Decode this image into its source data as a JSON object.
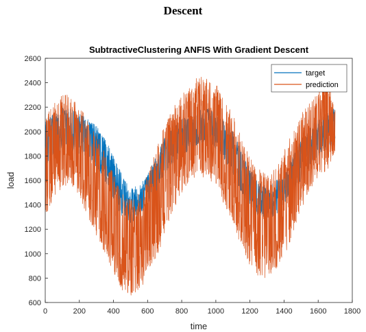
{
  "page": {
    "heading": "Descent"
  },
  "chart_data": {
    "type": "line",
    "title": "SubtractiveClustering ANFIS With Gradient Descent",
    "xlabel": "time",
    "ylabel": "load",
    "xlim": [
      0,
      1800
    ],
    "ylim": [
      600,
      2600
    ],
    "xticks": [
      0,
      200,
      400,
      600,
      800,
      1000,
      1200,
      1400,
      1600,
      1800
    ],
    "yticks": [
      600,
      800,
      1000,
      1200,
      1400,
      1600,
      1800,
      2000,
      2200,
      2400,
      2600
    ],
    "legend": {
      "location": "top-right",
      "entries": [
        "target",
        "prediction"
      ]
    },
    "grid": false,
    "n_points": 1700,
    "series": [
      {
        "name": "target",
        "color": "#0072BD",
        "envelope": {
          "x": [
            0,
            50,
            100,
            150,
            200,
            250,
            300,
            350,
            400,
            450,
            500,
            550,
            600,
            650,
            700,
            750,
            800,
            850,
            900,
            950,
            1000,
            1050,
            1100,
            1150,
            1200,
            1250,
            1300,
            1350,
            1400,
            1450,
            1500,
            1550,
            1600,
            1650,
            1700
          ],
          "low": [
            1700,
            1800,
            1850,
            1850,
            1800,
            1750,
            1700,
            1600,
            1450,
            1300,
            1250,
            1300,
            1400,
            1500,
            1650,
            1750,
            1800,
            1850,
            1900,
            1900,
            1850,
            1750,
            1650,
            1500,
            1400,
            1300,
            1300,
            1300,
            1400,
            1500,
            1600,
            1700,
            1800,
            1850,
            1900
          ],
          "high": [
            2100,
            2150,
            2200,
            2200,
            2150,
            2100,
            2050,
            1950,
            1800,
            1650,
            1550,
            1550,
            1650,
            1800,
            1950,
            2050,
            2100,
            2150,
            2200,
            2200,
            2150,
            2100,
            2000,
            1850,
            1700,
            1600,
            1550,
            1600,
            1650,
            1800,
            1950,
            2050,
            2100,
            2150,
            2200
          ]
        }
      },
      {
        "name": "prediction",
        "color": "#D95319",
        "envelope": {
          "x": [
            0,
            50,
            100,
            150,
            200,
            250,
            300,
            350,
            400,
            450,
            500,
            550,
            600,
            650,
            700,
            750,
            800,
            850,
            900,
            950,
            1000,
            1050,
            1100,
            1150,
            1200,
            1250,
            1300,
            1350,
            1400,
            1450,
            1500,
            1550,
            1600,
            1650,
            1700
          ],
          "low": [
            1300,
            1450,
            1550,
            1550,
            1450,
            1300,
            1150,
            1000,
            850,
            700,
            650,
            700,
            800,
            950,
            1150,
            1350,
            1500,
            1600,
            1650,
            1600,
            1550,
            1400,
            1250,
            1050,
            900,
            800,
            800,
            850,
            950,
            1150,
            1350,
            1500,
            1600,
            1650,
            1850
          ],
          "high": [
            2100,
            2250,
            2300,
            2300,
            2200,
            2100,
            2000,
            1850,
            1650,
            1500,
            1450,
            1500,
            1650,
            1850,
            2050,
            2200,
            2300,
            2400,
            2450,
            2450,
            2400,
            2300,
            2150,
            1950,
            1800,
            1700,
            1650,
            1700,
            1850,
            2000,
            2150,
            2250,
            2350,
            2550,
            2200
          ]
        }
      }
    ]
  }
}
